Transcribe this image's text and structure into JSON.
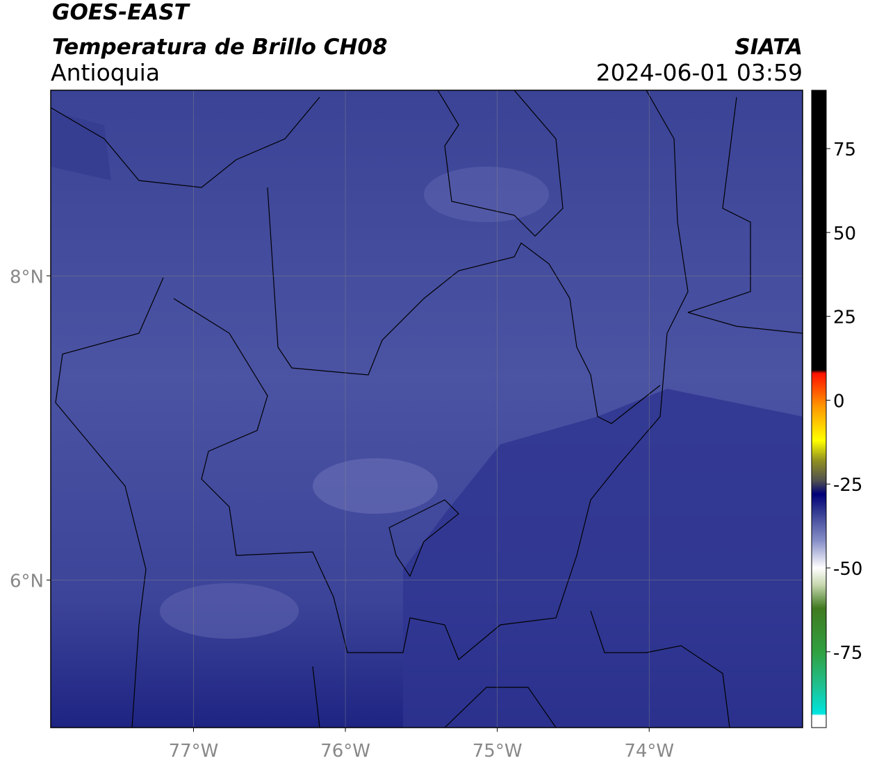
{
  "header": {
    "satellite": "GOES-EAST",
    "product": "Temperatura de Brillo CH08",
    "region": "Antioquia",
    "source": "SIATA",
    "timestamp": "2024-06-01 03:59"
  },
  "map": {
    "lonlim": [
      -77.94,
      -72.99
    ],
    "latlim": [
      5.03,
      9.22
    ],
    "lonticks": [
      {
        "value": -77,
        "label": "77°W"
      },
      {
        "value": -76,
        "label": "76°W"
      },
      {
        "value": -75,
        "label": "75°W"
      },
      {
        "value": -74,
        "label": "74°W"
      }
    ],
    "latticks": [
      {
        "value": 8,
        "label": "8°N"
      },
      {
        "value": 6,
        "label": "6°N"
      }
    ],
    "grid": true
  },
  "colorbar": {
    "lim": [
      -97.6,
      92.4
    ],
    "ticks": [
      75,
      50,
      25,
      0,
      -25,
      -50,
      -75
    ],
    "stops": [
      {
        "value": -97.6,
        "color": "#ffffff"
      },
      {
        "value": -94,
        "color": "#ffffff"
      },
      {
        "value": -93.5,
        "color": "#00e5e0"
      },
      {
        "value": -85,
        "color": "#20c090"
      },
      {
        "value": -75,
        "color": "#30a040"
      },
      {
        "value": -62,
        "color": "#407a20"
      },
      {
        "value": -55,
        "color": "#c8d8b0"
      },
      {
        "value": -50,
        "color": "#ffffff"
      },
      {
        "value": -42,
        "color": "#8890c8"
      },
      {
        "value": -33,
        "color": "#303890"
      },
      {
        "value": -28,
        "color": "#000078"
      },
      {
        "value": -24,
        "color": "#505050"
      },
      {
        "value": -18,
        "color": "#909020"
      },
      {
        "value": -12,
        "color": "#ffff00"
      },
      {
        "value": -2,
        "color": "#ff9900"
      },
      {
        "value": 8,
        "color": "#ff1000"
      },
      {
        "value": 9,
        "color": "#000000"
      },
      {
        "value": 92.4,
        "color": "#000000"
      }
    ]
  }
}
